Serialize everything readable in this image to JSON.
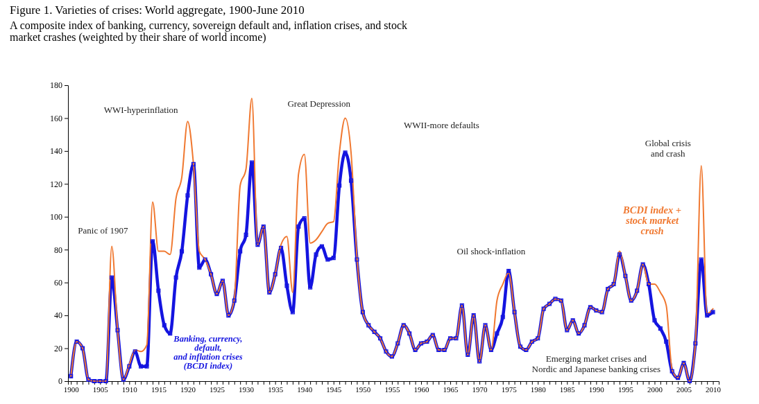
{
  "chart_data": {
    "type": "line",
    "title": "Figure 1.  Varieties of crises: World aggregate, 1900-June 2010",
    "subtitle": "A composite index of banking, currency, sovereign default and, inflation crises, and stock\nmarket crashes (weighted by their share of world income)",
    "x": [
      1900,
      1901,
      1902,
      1903,
      1904,
      1905,
      1906,
      1907,
      1908,
      1909,
      1910,
      1911,
      1912,
      1913,
      1914,
      1915,
      1916,
      1917,
      1918,
      1919,
      1920,
      1921,
      1922,
      1923,
      1924,
      1925,
      1926,
      1927,
      1928,
      1929,
      1930,
      1931,
      1932,
      1933,
      1934,
      1935,
      1936,
      1937,
      1938,
      1939,
      1940,
      1941,
      1942,
      1943,
      1944,
      1945,
      1946,
      1947,
      1948,
      1949,
      1950,
      1951,
      1952,
      1953,
      1954,
      1955,
      1956,
      1957,
      1958,
      1959,
      1960,
      1961,
      1962,
      1963,
      1964,
      1965,
      1966,
      1967,
      1968,
      1969,
      1970,
      1971,
      1972,
      1973,
      1974,
      1975,
      1976,
      1977,
      1978,
      1979,
      1980,
      1981,
      1982,
      1983,
      1984,
      1985,
      1986,
      1987,
      1988,
      1989,
      1990,
      1991,
      1992,
      1993,
      1994,
      1995,
      1996,
      1997,
      1998,
      1999,
      2000,
      2001,
      2002,
      2003,
      2004,
      2005,
      2006,
      2007,
      2008,
      2009,
      2010
    ],
    "series": [
      {
        "name": "BCDI index +\nstock market\ncrash",
        "color": "#f07830",
        "marker": "none",
        "values": [
          3,
          24,
          20,
          1,
          0,
          0,
          0,
          82,
          31,
          1,
          10,
          19,
          18,
          22,
          109,
          79,
          79,
          77,
          111,
          124,
          158,
          132,
          79,
          74,
          65,
          53,
          61,
          40,
          50,
          119,
          129,
          172,
          83,
          94,
          54,
          65,
          83,
          88,
          54,
          126,
          138,
          84,
          86,
          91,
          96,
          97,
          139,
          160,
          139,
          76,
          42,
          34,
          30,
          26,
          18,
          15,
          23,
          34,
          29,
          19,
          23,
          24,
          28,
          19,
          19,
          26,
          26,
          46,
          16,
          40,
          12,
          34,
          19,
          49,
          59,
          66,
          42,
          21,
          19,
          24,
          26,
          44,
          47,
          50,
          49,
          31,
          37,
          29,
          34,
          45,
          43,
          42,
          56,
          59,
          79,
          64,
          49,
          55,
          71,
          59,
          59,
          54,
          46,
          7,
          2,
          11,
          0,
          23,
          131,
          41,
          44
        ]
      },
      {
        "name": "Banking, currency,\ndefault,\nand inflation crises\n(BCDI index)",
        "color": "#1414e0",
        "marker": "square",
        "values": [
          3,
          24,
          20,
          1,
          0,
          0,
          0,
          63,
          31,
          1,
          9,
          18,
          9,
          9,
          85,
          55,
          34,
          29,
          63,
          79,
          113,
          132,
          69,
          74,
          65,
          53,
          61,
          40,
          49,
          79,
          89,
          133,
          83,
          94,
          54,
          65,
          81,
          58,
          42,
          94,
          99,
          57,
          77,
          82,
          74,
          75,
          119,
          139,
          122,
          74,
          42,
          34,
          30,
          26,
          18,
          15,
          23,
          34,
          29,
          19,
          23,
          24,
          28,
          19,
          19,
          26,
          26,
          46,
          16,
          40,
          12,
          34,
          19,
          29,
          39,
          67,
          42,
          21,
          19,
          24,
          26,
          44,
          47,
          50,
          49,
          31,
          37,
          29,
          34,
          45,
          43,
          42,
          56,
          59,
          77,
          64,
          49,
          55,
          71,
          59,
          37,
          32,
          24,
          6,
          2,
          11,
          0,
          23,
          74,
          40,
          42
        ]
      }
    ],
    "xlim": [
      1899.5,
      2011
    ],
    "xticks": [
      1900,
      {
        "value": 1901,
        "label": null
      },
      {
        "value": 1902,
        "label": null
      },
      {
        "value": 1903,
        "label": null
      },
      {
        "value": 1904,
        "label": null
      },
      1905,
      {
        "value": 1906,
        "label": null
      },
      {
        "value": 1907,
        "label": null
      },
      {
        "value": 1908,
        "label": null
      },
      {
        "value": 1909,
        "label": null
      },
      1910,
      {
        "value": 1911,
        "label": null
      },
      {
        "value": 1912,
        "label": null
      },
      {
        "value": 1913,
        "label": null
      },
      {
        "value": 1914,
        "label": null
      },
      1915,
      {
        "value": 1916,
        "label": null
      },
      {
        "value": 1917,
        "label": null
      },
      {
        "value": 1918,
        "label": null
      },
      {
        "value": 1919,
        "label": null
      },
      1920,
      {
        "value": 1921,
        "label": null
      },
      {
        "value": 1922,
        "label": null
      },
      {
        "value": 1923,
        "label": null
      },
      {
        "value": 1924,
        "label": null
      },
      1925,
      {
        "value": 1926,
        "label": null
      },
      {
        "value": 1927,
        "label": null
      },
      {
        "value": 1928,
        "label": null
      },
      {
        "value": 1929,
        "label": null
      },
      1930,
      {
        "value": 1931,
        "label": null
      },
      {
        "value": 1932,
        "label": null
      },
      {
        "value": 1933,
        "label": null
      },
      {
        "value": 1934,
        "label": null
      },
      1935,
      {
        "value": 1936,
        "label": null
      },
      {
        "value": 1937,
        "label": null
      },
      {
        "value": 1938,
        "label": null
      },
      {
        "value": 1939,
        "label": null
      },
      1940,
      {
        "value": 1941,
        "label": null
      },
      {
        "value": 1942,
        "label": null
      },
      {
        "value": 1943,
        "label": null
      },
      {
        "value": 1944,
        "label": null
      },
      1945,
      {
        "value": 1946,
        "label": null
      },
      {
        "value": 1947,
        "label": null
      },
      {
        "value": 1948,
        "label": null
      },
      {
        "value": 1949,
        "label": null
      },
      1950,
      {
        "value": 1951,
        "label": null
      },
      {
        "value": 1952,
        "label": null
      },
      {
        "value": 1953,
        "label": null
      },
      {
        "value": 1954,
        "label": null
      },
      1955,
      {
        "value": 1956,
        "label": null
      },
      {
        "value": 1957,
        "label": null
      },
      {
        "value": 1958,
        "label": null
      },
      {
        "value": 1959,
        "label": null
      },
      1960,
      {
        "value": 1961,
        "label": null
      },
      {
        "value": 1962,
        "label": null
      },
      {
        "value": 1963,
        "label": null
      },
      {
        "value": 1964,
        "label": null
      },
      1965,
      {
        "value": 1966,
        "label": null
      },
      {
        "value": 1967,
        "label": null
      },
      {
        "value": 1968,
        "label": null
      },
      {
        "value": 1969,
        "label": null
      },
      1970,
      {
        "value": 1971,
        "label": null
      },
      {
        "value": 1972,
        "label": null
      },
      {
        "value": 1973,
        "label": null
      },
      {
        "value": 1974,
        "label": null
      },
      1975,
      {
        "value": 1976,
        "label": null
      },
      {
        "value": 1977,
        "label": null
      },
      {
        "value": 1978,
        "label": null
      },
      {
        "value": 1979,
        "label": null
      },
      1980,
      {
        "value": 1981,
        "label": null
      },
      {
        "value": 1982,
        "label": null
      },
      {
        "value": 1983,
        "label": null
      },
      {
        "value": 1984,
        "label": null
      },
      1985,
      {
        "value": 1986,
        "label": null
      },
      {
        "value": 1987,
        "label": null
      },
      {
        "value": 1988,
        "label": null
      },
      {
        "value": 1989,
        "label": null
      },
      1990,
      {
        "value": 1991,
        "label": null
      },
      {
        "value": 1992,
        "label": null
      },
      {
        "value": 1993,
        "label": null
      },
      {
        "value": 1994,
        "label": null
      },
      1995,
      {
        "value": 1996,
        "label": null
      },
      {
        "value": 1997,
        "label": null
      },
      {
        "value": 1998,
        "label": null
      },
      {
        "value": 1999,
        "label": null
      },
      2000,
      {
        "value": 2001,
        "label": null
      },
      {
        "value": 2002,
        "label": null
      },
      {
        "value": 2003,
        "label": null
      },
      {
        "value": 2004,
        "label": null
      },
      2005,
      {
        "value": 2006,
        "label": null
      },
      {
        "value": 2007,
        "label": null
      },
      {
        "value": 2008,
        "label": null
      },
      {
        "value": 2009,
        "label": null
      },
      2010
    ],
    "ylim": [
      0,
      180
    ],
    "yticks": [
      0,
      20,
      40,
      60,
      80,
      100,
      120,
      140,
      160,
      180
    ],
    "grid": false,
    "legend": false,
    "line_style": "solid",
    "annotations": [
      "WWI-hyperinflation",
      "Great Depression",
      "WWII-more defaults",
      "Panic of 1907",
      "Oil shock-inflation",
      "Global crisis\nand crash",
      "Emerging market crises and\nNordic and Japanese banking crises"
    ]
  }
}
